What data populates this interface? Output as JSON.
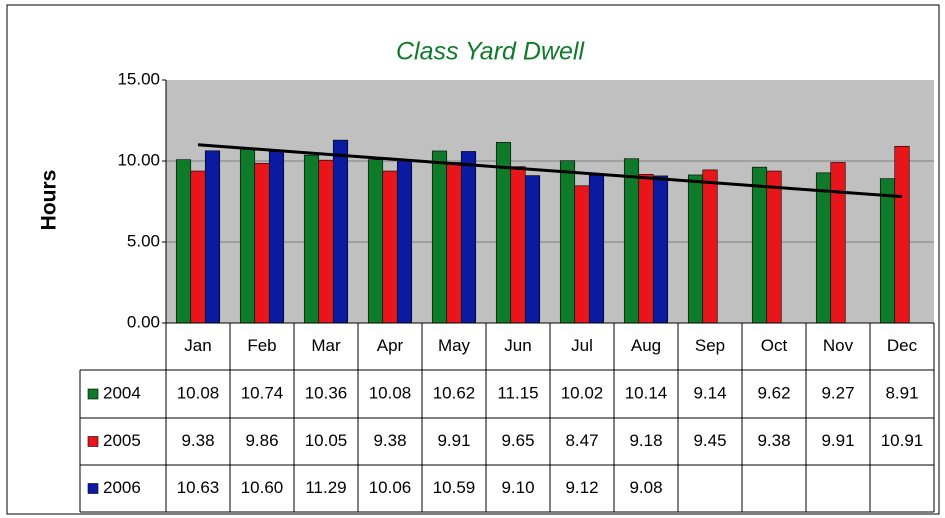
{
  "chart_data": {
    "type": "bar",
    "title": "Class Yard Dwell",
    "y_label": "Hours",
    "categories": [
      "Jan",
      "Feb",
      "Mar",
      "Apr",
      "May",
      "Jun",
      "Jul",
      "Aug",
      "Sep",
      "Oct",
      "Nov",
      "Dec"
    ],
    "series": [
      {
        "name": "2004",
        "color": "#0f7a2a",
        "values": [
          10.08,
          10.74,
          10.36,
          10.08,
          10.62,
          11.15,
          10.02,
          10.14,
          9.14,
          9.62,
          9.27,
          8.91
        ],
        "value_labels": [
          "10.08",
          "10.74",
          "10.36",
          "10.08",
          "10.62",
          "11.15",
          "10.02",
          "10.14",
          "9.14",
          "9.62",
          "9.27",
          "8.91"
        ]
      },
      {
        "name": "2005",
        "color": "#e8161b",
        "values": [
          9.38,
          9.86,
          10.05,
          9.38,
          9.91,
          9.65,
          8.47,
          9.18,
          9.45,
          9.38,
          9.91,
          10.91
        ],
        "value_labels": [
          "9.38",
          "9.86",
          "10.05",
          "9.38",
          "9.91",
          "9.65",
          "8.47",
          "9.18",
          "9.45",
          "9.38",
          "9.91",
          "10.91"
        ]
      },
      {
        "name": "2006",
        "color": "#0b1aa0",
        "values": [
          10.63,
          10.6,
          11.29,
          10.06,
          10.59,
          9.1,
          9.12,
          9.08,
          null,
          null,
          null,
          null
        ],
        "value_labels": [
          "10.63",
          "10.60",
          "11.29",
          "10.06",
          "10.59",
          "9.10",
          "9.12",
          "9.08",
          null,
          null,
          null,
          null
        ]
      }
    ],
    "trendline": [
      11.0,
      7.8
    ],
    "ylim": [
      0,
      15
    ],
    "yticks": [
      {
        "value": 0,
        "label": "0.00"
      },
      {
        "value": 5,
        "label": "5.00"
      },
      {
        "value": 10,
        "label": "10.00"
      },
      {
        "value": 15,
        "label": "15.00"
      }
    ],
    "grid": true
  }
}
